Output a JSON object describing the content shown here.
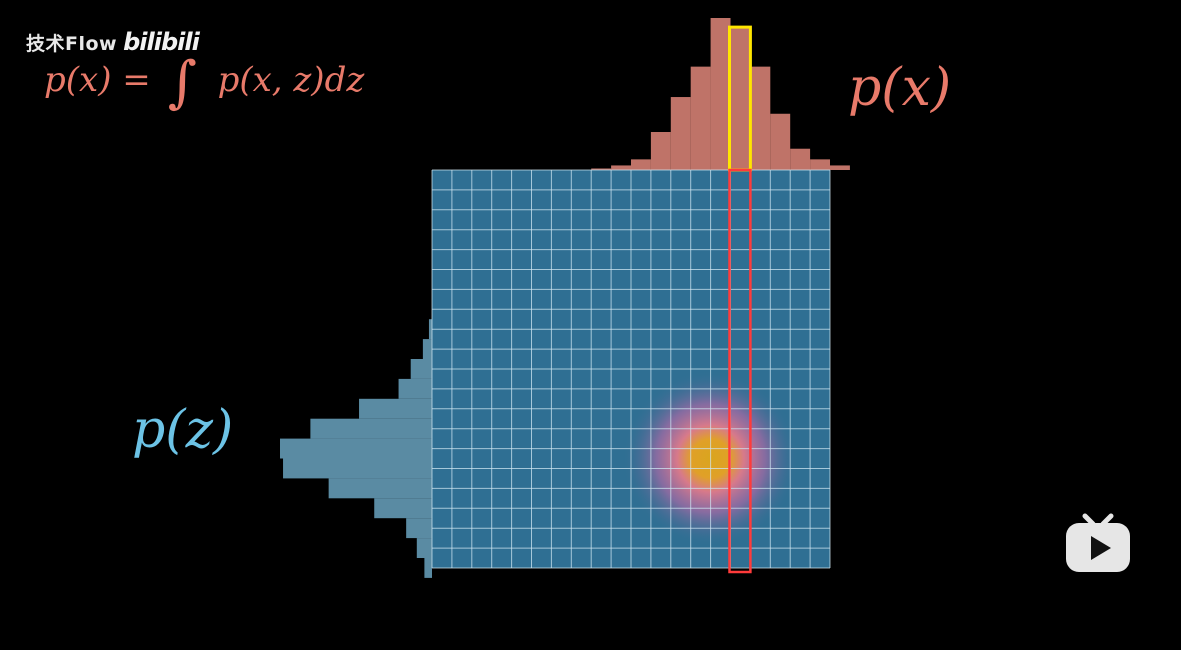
{
  "watermark": {
    "channel": "技术Flow",
    "logo_text": "bilibili"
  },
  "formula": {
    "lhs": "p(x) =",
    "integral_symbol": "∫",
    "rhs": "p(x, z)dz"
  },
  "marginal_x_label": "p(x)",
  "marginal_z_label": "p(z)",
  "icons": {
    "play": "play-icon",
    "tv": "bilibili-tv-icon"
  },
  "colors": {
    "background": "#000000",
    "grid_fill": "#2f6f93",
    "grid_lines": "#cfe6f2",
    "marginal_x": "#e0877a",
    "marginal_z": "#6aa3c0",
    "highlight_bar": "#ffe600",
    "highlight_column": "#ff3b3b",
    "formula_text": "#e87a6a",
    "pz_text": "#6cc3e6"
  },
  "grid": {
    "cols": 20,
    "rows": 20,
    "peak_col": 14,
    "peak_row": 14.5,
    "highlighted_col": 15
  },
  "marginal_x_heights": [
    0,
    0,
    0,
    0,
    0,
    0,
    0,
    0,
    0.01,
    0.03,
    0.07,
    0.25,
    0.48,
    0.68,
    1.0,
    0.94,
    0.68,
    0.37,
    0.14,
    0.07,
    0.03
  ],
  "marginal_z_widths": [
    0,
    0,
    0,
    0,
    0,
    0,
    0,
    0,
    0.02,
    0.06,
    0.14,
    0.22,
    0.48,
    0.8,
    1.0,
    0.98,
    0.68,
    0.38,
    0.17,
    0.1,
    0.05
  ]
}
